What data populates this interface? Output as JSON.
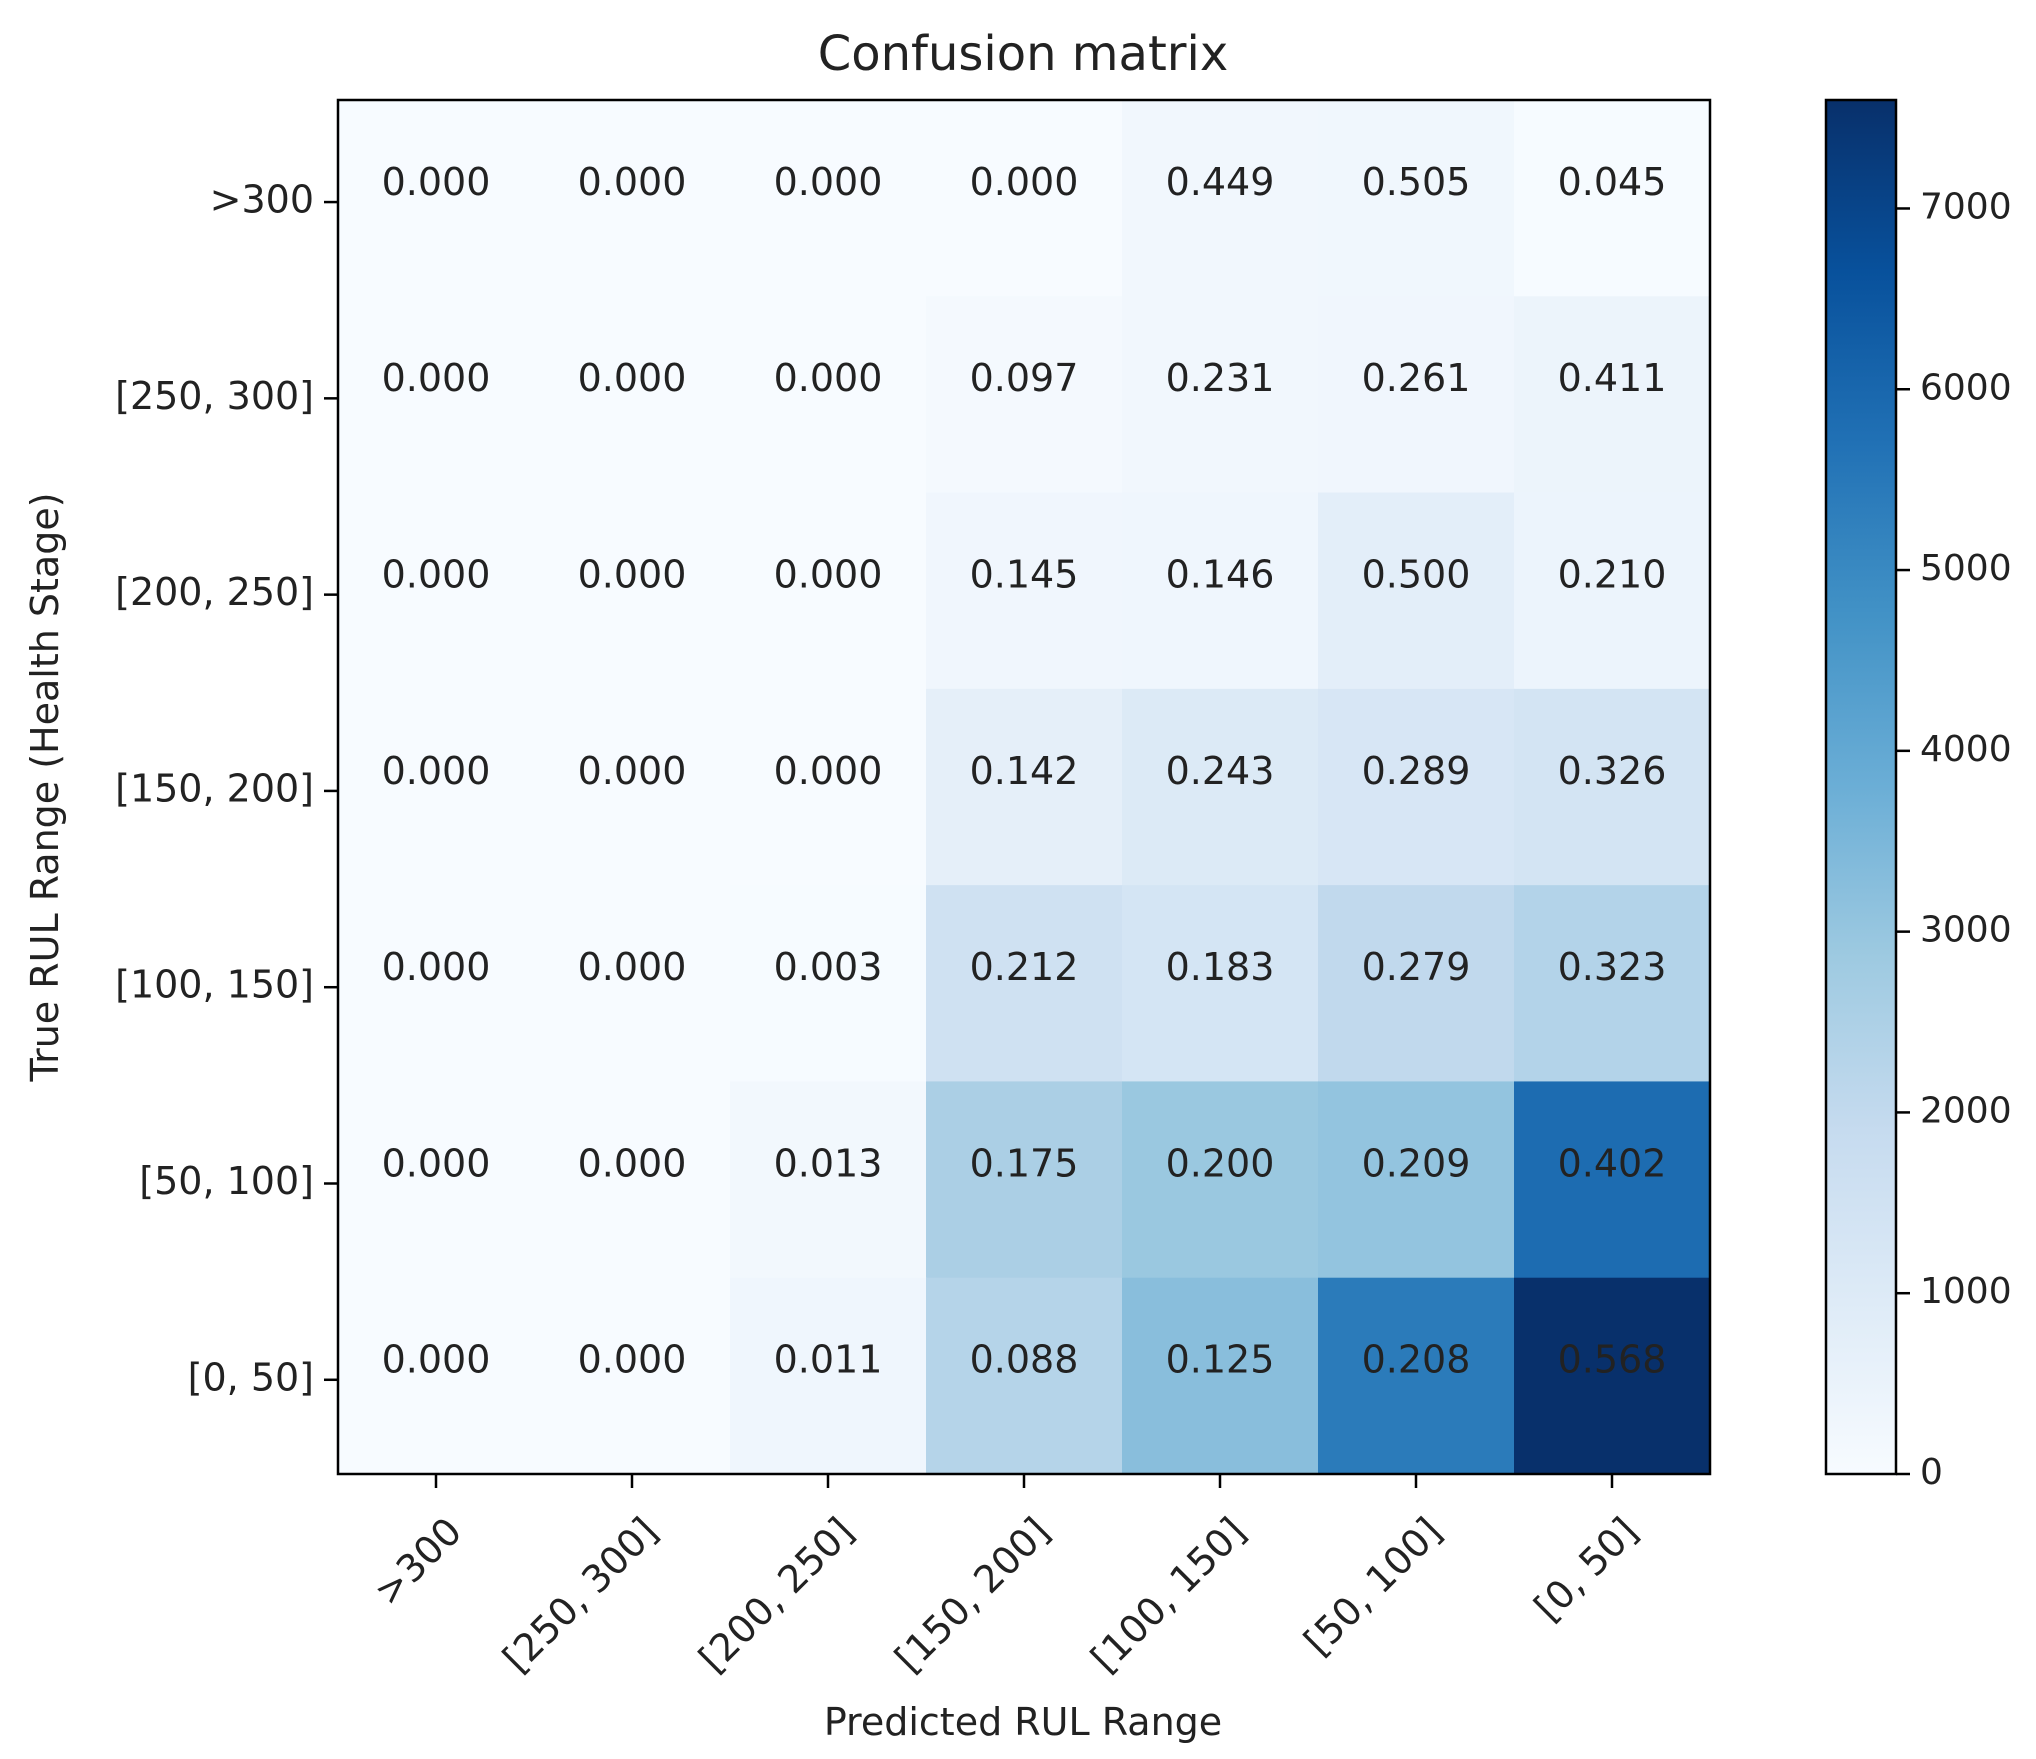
{
  "chart_data": {
    "type": "heatmap",
    "title": "Confusion matrix",
    "xlabel": "Predicted RUL Range",
    "ylabel": "True RUL Range (Health Stage)",
    "x_categories": [
      ">300",
      "[250, 300]",
      "[200, 250]",
      "[150, 200]",
      "[100, 150]",
      "[50, 100]",
      "[0, 50]"
    ],
    "y_categories": [
      ">300",
      "[250, 300]",
      "[200, 250]",
      "[150, 200]",
      "[100, 150]",
      "[50, 100]",
      "[0, 50]"
    ],
    "cell_labels": [
      [
        "0.000",
        "0.000",
        "0.000",
        "0.000",
        "0.449",
        "0.505",
        "0.045"
      ],
      [
        "0.000",
        "0.000",
        "0.000",
        "0.097",
        "0.231",
        "0.261",
        "0.411"
      ],
      [
        "0.000",
        "0.000",
        "0.000",
        "0.145",
        "0.146",
        "0.500",
        "0.210"
      ],
      [
        "0.000",
        "0.000",
        "0.000",
        "0.142",
        "0.243",
        "0.289",
        "0.326"
      ],
      [
        "0.000",
        "0.000",
        "0.003",
        "0.212",
        "0.183",
        "0.279",
        "0.323"
      ],
      [
        "0.000",
        "0.000",
        "0.013",
        "0.175",
        "0.200",
        "0.209",
        "0.402"
      ],
      [
        "0.000",
        "0.000",
        "0.011",
        "0.088",
        "0.125",
        "0.208",
        "0.568"
      ]
    ],
    "counts_estimated": [
      [
        0,
        0,
        0,
        0,
        220,
        250,
        25
      ],
      [
        0,
        0,
        0,
        100,
        240,
        270,
        420
      ],
      [
        0,
        0,
        0,
        280,
        290,
        750,
        400
      ],
      [
        0,
        0,
        0,
        700,
        1020,
        1220,
        1380
      ],
      [
        0,
        0,
        25,
        1530,
        1330,
        2020,
        2340
      ],
      [
        0,
        0,
        190,
        2550,
        2920,
        3050,
        5860
      ],
      [
        0,
        0,
        290,
        2300,
        3250,
        5400,
        7600
      ]
    ],
    "colorbar": {
      "min": 0,
      "max": 7600,
      "ticks": [
        0,
        1000,
        2000,
        3000,
        4000,
        5000,
        6000,
        7000
      ],
      "colormap": "Blues"
    }
  }
}
